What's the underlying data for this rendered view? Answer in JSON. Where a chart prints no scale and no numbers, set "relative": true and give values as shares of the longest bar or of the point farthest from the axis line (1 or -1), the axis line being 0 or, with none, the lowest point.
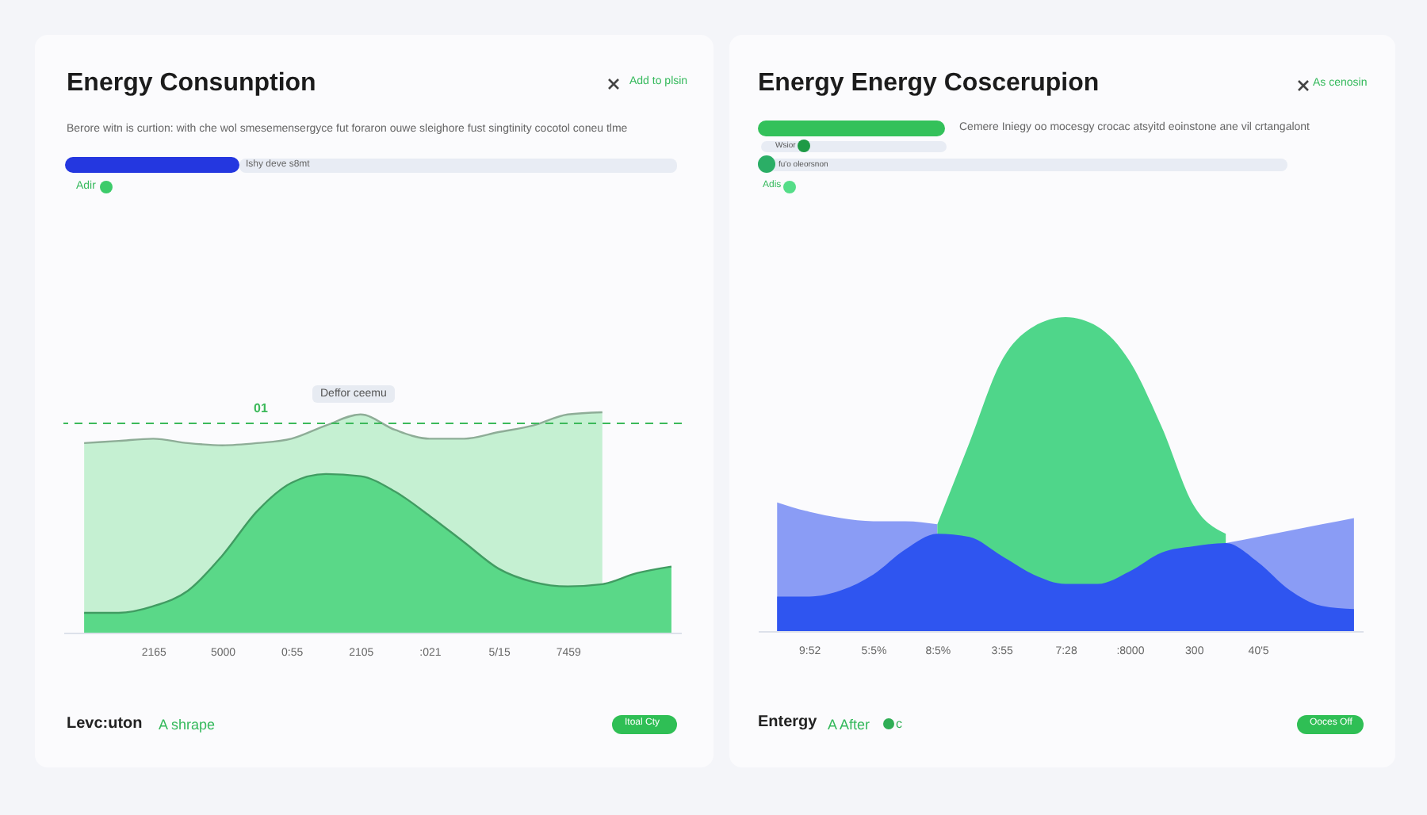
{
  "chart_data": [
    {
      "type": "area",
      "title": "Energy Consunption",
      "subtitle": "Berore witn is curtion: with che wol smesemensergyce fut foraron ouwe sleighore fust singtinity cocotol coneu tlme",
      "relative": true,
      "line_style": "solid",
      "categories": [
        null,
        null,
        "2165",
        null,
        "5000",
        null,
        "0:55",
        null,
        "2105",
        null,
        ":021",
        null,
        "5/15",
        null,
        "7459",
        null,
        null,
        null
      ],
      "series": [
        {
          "color": "#c5f0d2",
          "values": [
            0.86,
            0.87,
            0.88,
            0.86,
            0.85,
            0.86,
            0.88,
            0.94,
            0.99,
            0.92,
            0.88,
            0.88,
            0.91,
            0.94,
            0.99,
            1.0,
            null,
            null
          ]
        },
        {
          "color": "#5ad888",
          "values": [
            0.09,
            0.09,
            0.12,
            0.19,
            0.35,
            0.55,
            0.68,
            0.72,
            0.71,
            0.64,
            0.53,
            0.41,
            0.29,
            0.23,
            0.21,
            0.22,
            0.27,
            0.3
          ]
        }
      ],
      "ref_lines": [
        {
          "axis": "y",
          "value": 0.95,
          "label": "01",
          "color": "#3cb95a",
          "line_style": "dashed"
        }
      ],
      "annotations": [
        "Add to plsin",
        "Ishy deve s8mt",
        "Adir",
        "Deffor ceemu",
        "Levc:uton",
        "A shrape",
        "Itoal Cty"
      ]
    },
    {
      "type": "area",
      "title": "Energy Energy Coscerupion",
      "subtitle": "Cemere Iniegy oo mocesgy crocac atsyitd eoinstone ane vil crtangalont",
      "relative": true,
      "categories": [
        null,
        "9:52",
        null,
        "5:5%",
        null,
        "8:5%",
        null,
        "3:55",
        null,
        "7:28",
        null,
        ":8000",
        null,
        "300",
        null,
        "40'5",
        null,
        null,
        null
      ],
      "series": [
        {
          "color": "#8a9cf5",
          "values": [
            0.41,
            0.38,
            0.36,
            0.35,
            0.35,
            0.34,
            null,
            null,
            null,
            null,
            null,
            null,
            null,
            null,
            0.28,
            0.3,
            0.32,
            0.34,
            0.36
          ]
        },
        {
          "color": "#4fd68a",
          "values": [
            null,
            null,
            null,
            null,
            null,
            0.34,
            0.6,
            0.86,
            0.97,
            1.0,
            0.97,
            0.86,
            0.65,
            0.4,
            0.31,
            null,
            null,
            null,
            null
          ]
        },
        {
          "color": "#2f55f0",
          "values": [
            0.11,
            0.11,
            0.13,
            0.18,
            0.26,
            0.31,
            0.3,
            0.24,
            0.18,
            0.15,
            0.15,
            0.19,
            0.25,
            0.27,
            0.28,
            0.22,
            0.13,
            0.08,
            0.07
          ]
        }
      ],
      "annotations": [
        "As cenosin",
        "Wsior",
        "fu'o oleorsnon",
        "Adis",
        "Entergy",
        "A After",
        "c",
        "Ooces Off"
      ]
    }
  ]
}
